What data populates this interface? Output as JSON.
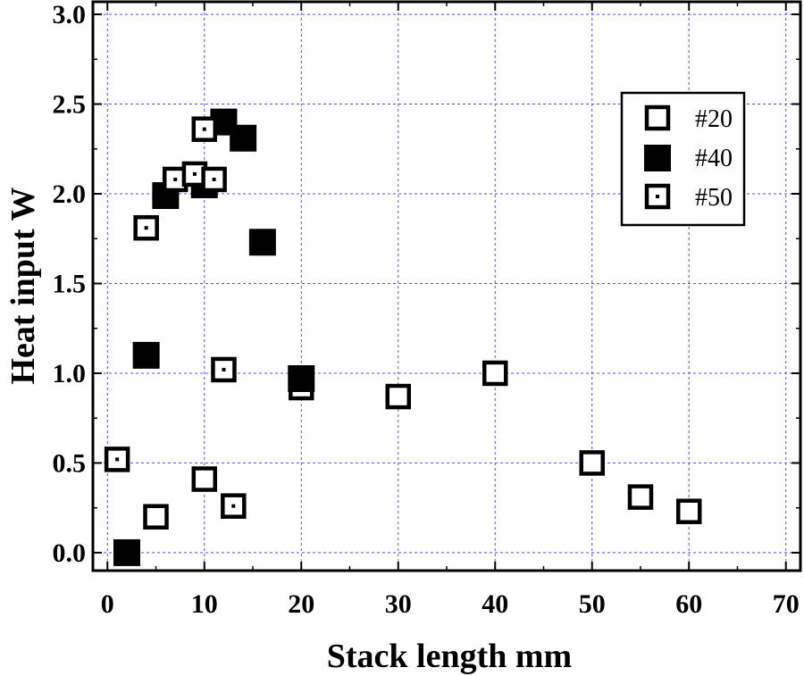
{
  "chart_data": {
    "type": "scatter",
    "xlabel": "Stack length  mm",
    "ylabel": "Heat input  W",
    "xlim": [
      -1.5,
      71.5
    ],
    "ylim": [
      -0.1,
      3.07
    ],
    "xticks": [
      0,
      10,
      20,
      30,
      40,
      50,
      60,
      70
    ],
    "yticks": [
      "0.0",
      "0.5",
      "1.0",
      "1.5",
      "2.0",
      "2.5",
      "3.0"
    ],
    "grid": true,
    "legend_position": "top-right",
    "series": [
      {
        "name": "#20",
        "marker": "open-square",
        "points": [
          {
            "x": 5,
            "y": 0.2
          },
          {
            "x": 10,
            "y": 0.41
          },
          {
            "x": 20,
            "y": 0.92
          },
          {
            "x": 30,
            "y": 0.87
          },
          {
            "x": 40,
            "y": 1.0
          },
          {
            "x": 50,
            "y": 0.5
          },
          {
            "x": 55,
            "y": 0.31
          },
          {
            "x": 60,
            "y": 0.23
          }
        ]
      },
      {
        "name": "#40",
        "marker": "filled-square",
        "points": [
          {
            "x": 2,
            "y": 0.0
          },
          {
            "x": 4,
            "y": 1.1
          },
          {
            "x": 6,
            "y": 1.99
          },
          {
            "x": 10,
            "y": 2.05
          },
          {
            "x": 12,
            "y": 2.4
          },
          {
            "x": 14,
            "y": 2.31
          },
          {
            "x": 16,
            "y": 1.73
          },
          {
            "x": 20,
            "y": 0.97
          }
        ]
      },
      {
        "name": "#50",
        "marker": "dotted-square",
        "points": [
          {
            "x": 1,
            "y": 0.52
          },
          {
            "x": 4,
            "y": 1.81
          },
          {
            "x": 7,
            "y": 2.08
          },
          {
            "x": 9,
            "y": 2.11
          },
          {
            "x": 10,
            "y": 2.36
          },
          {
            "x": 11,
            "y": 2.08
          },
          {
            "x": 12,
            "y": 1.02
          },
          {
            "x": 13,
            "y": 0.26
          }
        ]
      }
    ]
  }
}
